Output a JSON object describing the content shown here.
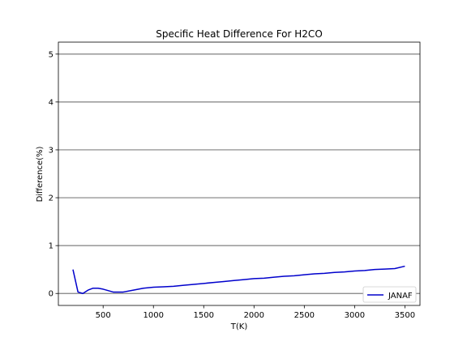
{
  "chart_data": {
    "type": "line",
    "title": "Specific Heat Difference For H2CO",
    "xlabel": "T(K)",
    "ylabel": "Difference(%)",
    "xlim": [
      55,
      3650
    ],
    "ylim": [
      -0.25,
      5.25
    ],
    "xticks": [
      500,
      1000,
      1500,
      2000,
      2500,
      3000,
      3500
    ],
    "yticks": [
      0,
      1,
      2,
      3,
      4,
      5
    ],
    "xtick_labels": [
      "500",
      "1000",
      "1500",
      "2000",
      "2500",
      "3000",
      "3500"
    ],
    "ytick_labels": [
      "0",
      "1",
      "2",
      "3",
      "4",
      "5"
    ],
    "grid": "horizontal",
    "legend_position": "lower-right",
    "series": [
      {
        "name": "JANAF",
        "color": "#0000cc",
        "x": [
          200,
          250,
          298,
          350,
          400,
          450,
          500,
          600,
          700,
          800,
          900,
          1000,
          1100,
          1200,
          1300,
          1400,
          1500,
          1600,
          1700,
          1800,
          1900,
          2000,
          2100,
          2200,
          2300,
          2400,
          2500,
          2600,
          2700,
          2800,
          2900,
          3000,
          3100,
          3200,
          3300,
          3400,
          3500
        ],
        "y": [
          0.5,
          0.03,
          0.0,
          0.07,
          0.11,
          0.11,
          0.09,
          0.03,
          0.03,
          0.07,
          0.11,
          0.13,
          0.14,
          0.15,
          0.17,
          0.19,
          0.21,
          0.23,
          0.25,
          0.27,
          0.29,
          0.31,
          0.32,
          0.34,
          0.36,
          0.37,
          0.39,
          0.41,
          0.42,
          0.44,
          0.45,
          0.47,
          0.48,
          0.5,
          0.51,
          0.52,
          0.57
        ]
      }
    ]
  }
}
